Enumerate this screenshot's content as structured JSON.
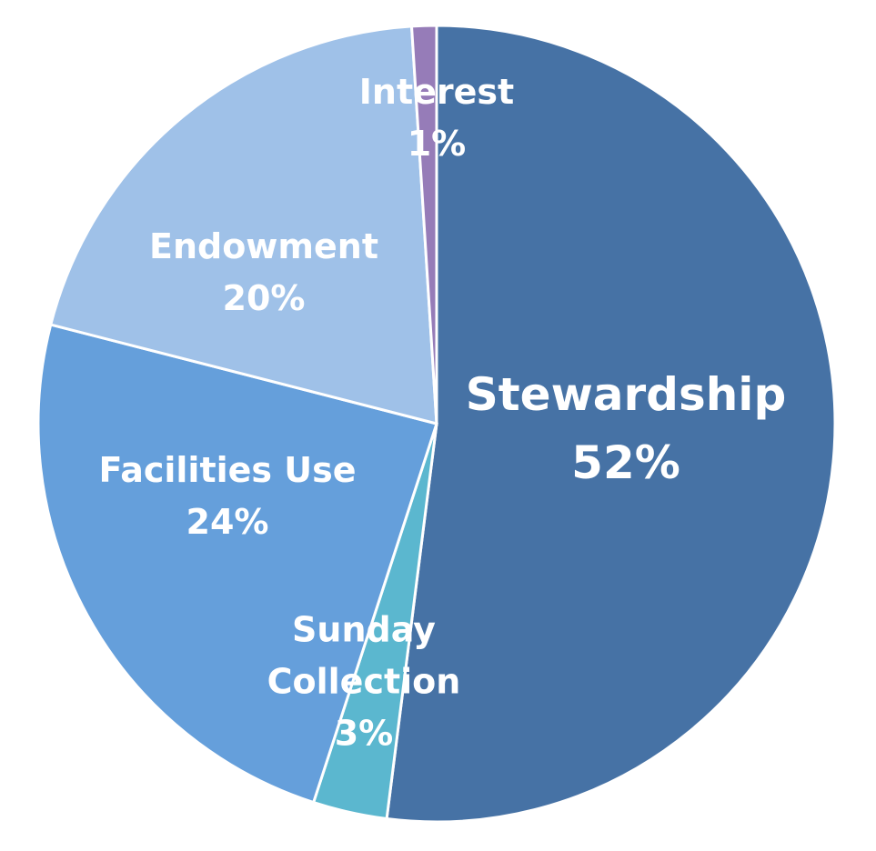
{
  "chart_data": {
    "type": "pie",
    "categories": [
      "Stewardship",
      "Sunday Collection",
      "Facilities Use",
      "Endowment",
      "Interest"
    ],
    "values": [
      52,
      3,
      24,
      20,
      1
    ],
    "value_labels": [
      "52%",
      "3%",
      "24%",
      "20%",
      "1%"
    ],
    "colors": [
      "#4672a5",
      "#5bb7cf",
      "#659fdb",
      "#9fc1e8",
      "#967cb8"
    ]
  }
}
